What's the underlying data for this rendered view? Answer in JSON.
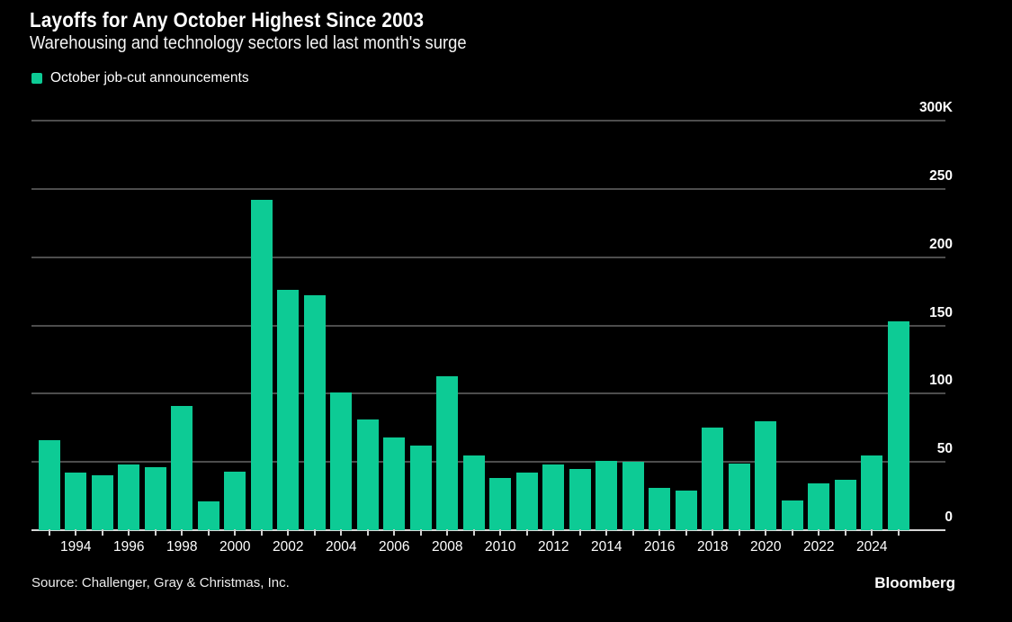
{
  "header": {
    "title": "Layoffs for Any October Highest Since 2003",
    "subtitle": "Warehousing and technology sectors led last month's surge"
  },
  "legend": {
    "label": "October job-cut announcements"
  },
  "footer": {
    "source": "Source: Challenger, Gray & Christmas, Inc.",
    "brand": "Bloomberg"
  },
  "colors": {
    "background": "#000000",
    "bar": "#0dcb95",
    "gridline": "#4d4d4d",
    "axis_line": "#d6d6d6",
    "text": "#ffffff"
  },
  "chart_data": {
    "type": "bar",
    "title": "Layoffs for Any October Highest Since 2003",
    "subtitle": "Warehousing and technology sectors led last month's surge",
    "series_name": "October job-cut announcements",
    "unit": "thousands of announced job cuts",
    "x": [
      1993,
      1994,
      1995,
      1996,
      1997,
      1998,
      1999,
      2000,
      2001,
      2002,
      2003,
      2004,
      2005,
      2006,
      2007,
      2008,
      2009,
      2010,
      2011,
      2012,
      2013,
      2014,
      2015,
      2016,
      2017,
      2018,
      2019,
      2020,
      2021,
      2022,
      2023,
      2024,
      2025
    ],
    "values": [
      66,
      42,
      40,
      48,
      46,
      91,
      21,
      43,
      242,
      176,
      172,
      101,
      81,
      68,
      62,
      113,
      55,
      38,
      42,
      48,
      45,
      51,
      50,
      31,
      29,
      75,
      49,
      80,
      22,
      34,
      37,
      55,
      153
    ],
    "ylim": [
      0,
      300
    ],
    "ytick_values": [
      0,
      50,
      100,
      150,
      200,
      250,
      300
    ],
    "ytick_labels": [
      "0",
      "50",
      "100",
      "150",
      "200",
      "250",
      "300K"
    ],
    "xtick_label_years": [
      1994,
      1996,
      1998,
      2000,
      2002,
      2004,
      2006,
      2008,
      2010,
      2012,
      2014,
      2016,
      2018,
      2020,
      2022,
      2024
    ],
    "grid": "horizontal",
    "grid_color": "#4d4d4d",
    "bar_color": "#0dcb95",
    "legend_position": "top-left",
    "ylabel_side": "right-above-gridline"
  }
}
